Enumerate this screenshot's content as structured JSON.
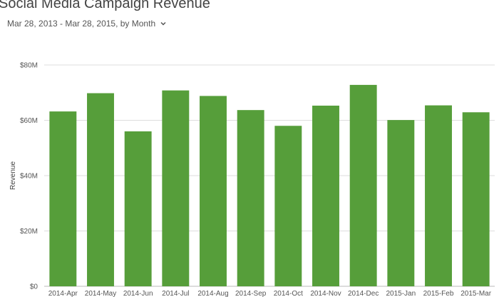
{
  "header": {
    "title": "Social Media Campaign Revenue",
    "date_range": "Mar 28, 2013 - Mar 28, 2015, by Month"
  },
  "chevron_icon": "chevron-down-icon",
  "colors": {
    "bar": "#569e3a",
    "grid": "#dddddd",
    "axis": "#bbbbbb"
  },
  "chart_data": {
    "type": "bar",
    "title": "Social Media Campaign Revenue",
    "xlabel": "",
    "ylabel": "Revenue",
    "ylim": [
      0,
      80000000
    ],
    "yticks": [
      0,
      20000000,
      40000000,
      60000000,
      80000000
    ],
    "ytick_labels": [
      "$0",
      "$20M",
      "$40M",
      "$60M",
      "$80M"
    ],
    "grid": true,
    "categories": [
      "2014-Apr",
      "2014-May",
      "2014-Jun",
      "2014-Jul",
      "2014-Aug",
      "2014-Sep",
      "2014-Oct",
      "2014-Nov",
      "2014-Dec",
      "2015-Jan",
      "2015-Feb",
      "2015-Mar"
    ],
    "values": [
      63200000,
      69800000,
      56000000,
      70800000,
      68800000,
      63700000,
      58000000,
      65300000,
      72800000,
      60100000,
      65400000,
      62900000
    ]
  }
}
